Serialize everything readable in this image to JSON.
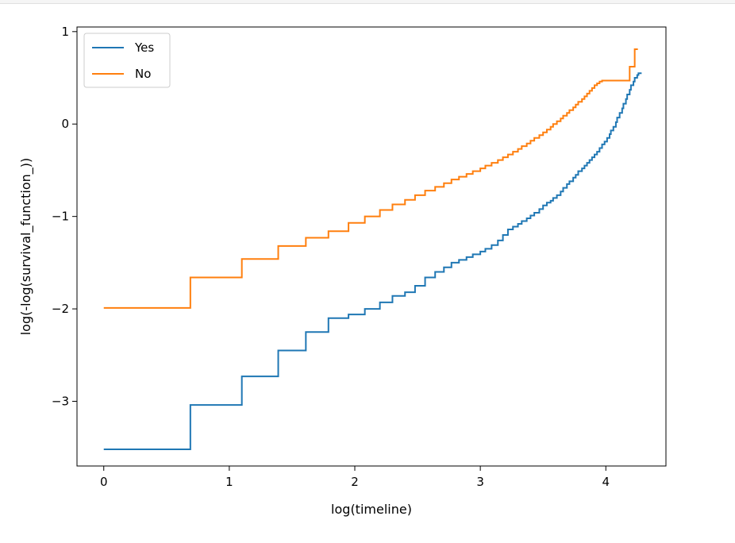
{
  "chart_data": {
    "type": "line",
    "step": true,
    "xlabel": "log(timeline)",
    "ylabel": "log(-log(survival_function_))",
    "xlim": [
      -0.2133,
      4.4789
    ],
    "ylim": [
      -3.7,
      1.05
    ],
    "xticks": [
      0,
      1,
      2,
      3,
      4
    ],
    "yticks": [
      -3,
      -2,
      -1,
      0,
      1
    ],
    "xtick_labels": [
      "0",
      "1",
      "2",
      "3",
      "4"
    ],
    "ytick_labels": [
      "−3",
      "−2",
      "−1",
      "0",
      "1"
    ],
    "grid": false,
    "legend": {
      "placement": "top-left"
    },
    "series": [
      {
        "name": "Yes",
        "color": "#1f77b4",
        "x": [
          0,
          0.69,
          1.1,
          1.39,
          1.61,
          1.79,
          1.95,
          2.08,
          2.2,
          2.3,
          2.4,
          2.48,
          2.56,
          2.64,
          2.71,
          2.77,
          2.83,
          2.89,
          2.94,
          3.0,
          3.04,
          3.09,
          3.14,
          3.18,
          3.22,
          3.26,
          3.3,
          3.33,
          3.37,
          3.4,
          3.43,
          3.47,
          3.5,
          3.53,
          3.56,
          3.58,
          3.61,
          3.64,
          3.66,
          3.69,
          3.71,
          3.74,
          3.76,
          3.78,
          3.81,
          3.83,
          3.85,
          3.87,
          3.89,
          3.91,
          3.93,
          3.95,
          3.97,
          3.99,
          4.01,
          4.03,
          4.04,
          4.06,
          4.08,
          4.09,
          4.11,
          4.13,
          4.14,
          4.16,
          4.17,
          4.19,
          4.2,
          4.22,
          4.23,
          4.25,
          4.26
        ],
        "y": [
          -3.52,
          -3.04,
          -2.73,
          -2.45,
          -2.25,
          -2.1,
          -2.06,
          -2.0,
          -1.93,
          -1.86,
          -1.82,
          -1.75,
          -1.66,
          -1.6,
          -1.55,
          -1.5,
          -1.47,
          -1.44,
          -1.41,
          -1.38,
          -1.35,
          -1.31,
          -1.26,
          -1.2,
          -1.14,
          -1.11,
          -1.08,
          -1.05,
          -1.02,
          -0.99,
          -0.96,
          -0.92,
          -0.88,
          -0.85,
          -0.83,
          -0.8,
          -0.77,
          -0.73,
          -0.69,
          -0.65,
          -0.62,
          -0.58,
          -0.55,
          -0.51,
          -0.48,
          -0.45,
          -0.42,
          -0.39,
          -0.36,
          -0.33,
          -0.3,
          -0.26,
          -0.22,
          -0.19,
          -0.15,
          -0.11,
          -0.07,
          -0.03,
          0.02,
          0.07,
          0.12,
          0.17,
          0.22,
          0.27,
          0.32,
          0.37,
          0.42,
          0.46,
          0.5,
          0.53,
          0.55
        ]
      },
      {
        "name": "No",
        "color": "#ff7f0e",
        "x": [
          0,
          0.69,
          1.1,
          1.39,
          1.61,
          1.79,
          1.95,
          2.08,
          2.2,
          2.3,
          2.4,
          2.48,
          2.56,
          2.64,
          2.71,
          2.77,
          2.83,
          2.89,
          2.94,
          3.0,
          3.04,
          3.09,
          3.14,
          3.18,
          3.22,
          3.26,
          3.3,
          3.33,
          3.37,
          3.4,
          3.43,
          3.47,
          3.5,
          3.53,
          3.56,
          3.58,
          3.61,
          3.64,
          3.66,
          3.69,
          3.71,
          3.74,
          3.76,
          3.78,
          3.81,
          3.83,
          3.85,
          3.87,
          3.89,
          3.91,
          3.93,
          3.95,
          3.97,
          3.99,
          4.01,
          4.04,
          4.08,
          4.13,
          4.19,
          4.23
        ],
        "y": [
          -1.99,
          -1.66,
          -1.46,
          -1.32,
          -1.23,
          -1.16,
          -1.07,
          -1.0,
          -0.93,
          -0.87,
          -0.82,
          -0.77,
          -0.72,
          -0.68,
          -0.64,
          -0.6,
          -0.57,
          -0.54,
          -0.51,
          -0.48,
          -0.45,
          -0.42,
          -0.39,
          -0.36,
          -0.33,
          -0.3,
          -0.27,
          -0.24,
          -0.21,
          -0.18,
          -0.15,
          -0.12,
          -0.09,
          -0.06,
          -0.03,
          0.0,
          0.03,
          0.06,
          0.09,
          0.12,
          0.15,
          0.18,
          0.21,
          0.24,
          0.27,
          0.3,
          0.33,
          0.36,
          0.39,
          0.42,
          0.44,
          0.46,
          0.47,
          0.47,
          0.47,
          0.47,
          0.47,
          0.47,
          0.62,
          0.81
        ]
      }
    ]
  }
}
